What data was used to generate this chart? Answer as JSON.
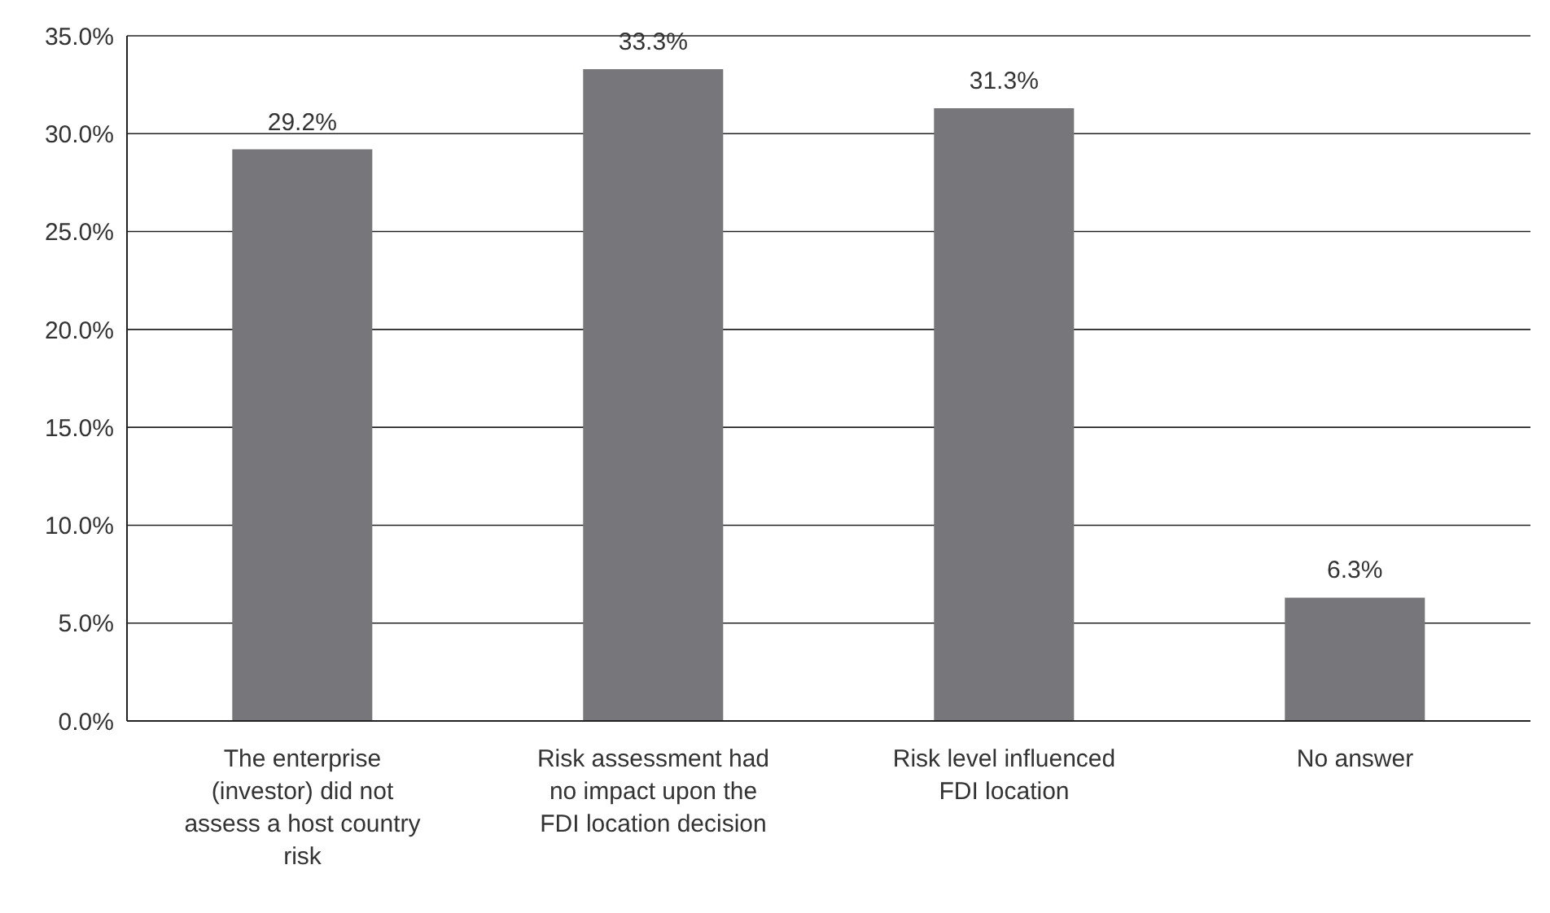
{
  "chart_data": {
    "type": "bar",
    "categories": [
      "The enterprise (investor) did not assess a host country risk",
      "Risk assessment had no impact upon the FDI location decision",
      "Risk level influenced FDI location",
      "No answer"
    ],
    "values": [
      29.2,
      33.3,
      31.3,
      6.3
    ],
    "value_labels": [
      "29.2%",
      "33.3%",
      "31.3%",
      "6.3%"
    ],
    "color": "#77777b",
    "ylim": [
      0,
      35
    ],
    "yticks": [
      {
        "value": 0,
        "label": "0.0%"
      },
      {
        "value": 5,
        "label": "5.0%"
      },
      {
        "value": 10,
        "label": "10.0%"
      },
      {
        "value": 15,
        "label": "15.0%"
      },
      {
        "value": 20,
        "label": "20.0%"
      },
      {
        "value": 25,
        "label": "25.0%"
      },
      {
        "value": 30,
        "label": "30.0%"
      },
      {
        "value": 35,
        "label": "35.0%"
      }
    ],
    "grid": "y"
  }
}
